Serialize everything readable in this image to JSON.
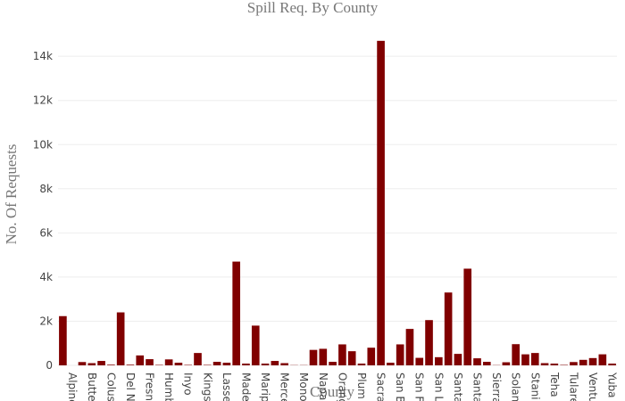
{
  "chart_data": {
    "type": "bar",
    "title": "Spill Req. By County",
    "x_label": "County",
    "y_label": "No. Of Requests",
    "categories": [
      null,
      "Alpine",
      null,
      "Butte",
      null,
      "Colus",
      null,
      "Del N",
      null,
      "Fresn",
      null,
      "Humb",
      null,
      "Inyo",
      null,
      "Kings",
      null,
      "Lasse",
      null,
      "Made",
      null,
      "Marip",
      null,
      "Merce",
      null,
      "Mono",
      null,
      "Napa",
      null,
      "Orang",
      null,
      "Plum",
      null,
      "Sacra",
      null,
      "San B",
      null,
      "San F",
      null,
      "San L",
      null,
      "Santa",
      null,
      "Santa",
      null,
      "Sierra",
      null,
      "Solan",
      null,
      "Stani",
      null,
      "Teha",
      null,
      "Tulare",
      null,
      "Ventu",
      null,
      "Yuba"
    ],
    "values": [
      2230,
      0,
      150,
      100,
      200,
      30,
      2400,
      30,
      450,
      280,
      20,
      270,
      120,
      20,
      560,
      20,
      160,
      120,
      4700,
      80,
      1800,
      80,
      200,
      100,
      10,
      10,
      700,
      750,
      160,
      950,
      640,
      80,
      800,
      14700,
      120,
      950,
      1650,
      340,
      2050,
      370,
      3300,
      520,
      4380,
      320,
      160,
      10,
      140,
      960,
      500,
      560,
      100,
      80,
      20,
      150,
      250,
      330,
      500,
      80
    ],
    "color": "#800000",
    "ylim": [
      0,
      15460
    ],
    "yticks": [
      0,
      {
        "value": 2000,
        "label": "2k"
      },
      {
        "value": 4000,
        "label": "4k"
      },
      {
        "value": 6000,
        "label": "6k"
      },
      {
        "value": 8000,
        "label": "8k"
      },
      {
        "value": 10000,
        "label": "10k"
      },
      {
        "value": 12000,
        "label": "12k"
      },
      {
        "value": 14000,
        "label": "14k"
      }
    ],
    "grid": true
  }
}
